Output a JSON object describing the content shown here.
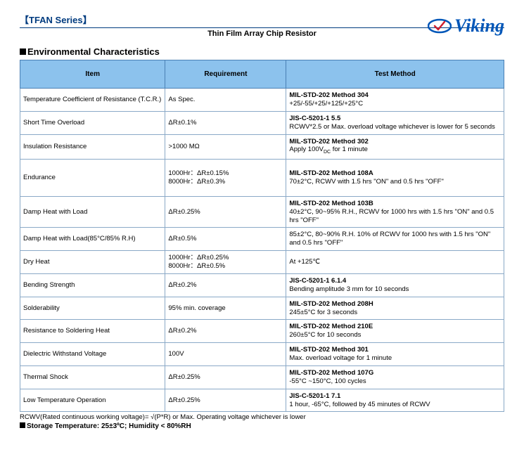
{
  "series_title": "【TFAN Series】",
  "subtitle": "Thin Film Array Chip Resistor",
  "logo_text": "Viking",
  "section_title": "Environmental Characteristics",
  "columns": [
    "Item",
    "Requirement",
    "Test Method"
  ],
  "rows": [
    {
      "item": "Temperature Coefficient of Resistance (T.C.R.)",
      "req": "As Spec.",
      "method_b": "MIL-STD-202   Method 304",
      "method": "+25/-55/+25/+125/+25°C"
    },
    {
      "item": "Short Time Overload",
      "req": "ΔR±0.1%",
      "method_b": "JIS-C-5201-1 5.5",
      "method": "RCWV*2.5 or Max. overload voltage whichever is lower for 5 seconds"
    },
    {
      "item": "Insulation Resistance",
      "req": ">1000 MΩ",
      "method_b": "MIL-STD-202   Method 302",
      "method": "Apply 100V_DC for 1 minute"
    },
    {
      "item": "Endurance",
      "req": "1000Hr：ΔR±0.15%\n8000Hr：ΔR±0.3%",
      "method_b": "MIL-STD-202   Method 108A",
      "method": "70±2°C, RCWV with 1.5 hrs \"ON\" and 0.5 hrs \"OFF\"",
      "tall": true
    },
    {
      "item": "Damp Heat with Load",
      "req": "ΔR±0.25%",
      "method_b": "MIL-STD-202   Method 103B",
      "method": "40±2°C, 90~95% R.H., RCWV for 1000 hrs with 1.5 hrs \"ON\" and 0.5 hrs \"OFF\""
    },
    {
      "item": "Damp Heat with Load(85°C/85% R.H)",
      "req": "ΔR±0.5%",
      "method_b": "",
      "method": "85±2°C, 80~90% R.H. 10% of RCWV for 1000 hrs with 1.5 hrs \"ON\" and 0.5 hrs \"OFF\""
    },
    {
      "item": "Dry Heat",
      "req": "1000Hr：ΔR±0.25%\n8000Hr：ΔR±0.5%",
      "method_b": "",
      "method": "At +125℃"
    },
    {
      "item": "Bending Strength",
      "req": "ΔR±0.2%",
      "method_b": "JIS-C-5201-1 6.1.4",
      "method": "Bending amplitude 3 mm for 10 seconds"
    },
    {
      "item": "Solderability",
      "req": "95% min. coverage",
      "method_b": "MIL-STD-202   Method 208H",
      "method": "245±5°C for 3 seconds"
    },
    {
      "item": "Resistance to Soldering Heat",
      "req": "ΔR±0.2%",
      "method_b": "MIL-STD-202   Method 210E",
      "method": "260±5°C for 10 seconds"
    },
    {
      "item": "Dielectric Withstand Voltage",
      "req": "100V",
      "method_b": "MIL-STD-202   Method 301",
      "method": "Max. overload voltage for 1 minute"
    },
    {
      "item": "Thermal Shock",
      "req": "ΔR±0.25%",
      "method_b": "MIL-STD-202   Method 107G",
      "method": "-55°C ~150°C, 100 cycles"
    },
    {
      "item": "Low Temperature Operation",
      "req": "ΔR±0.25%",
      "method_b": "JIS-C-5201-1 7.1",
      "method": "1 hour, -65°C, followed by 45 minutes of RCWV"
    }
  ],
  "footnote": "RCWV(Rated continuous working voltage)= √(P*R) or Max. Operating voltage whichever is lower",
  "storage": "Storage Temperature: 25±3ºC; Humidity < 80%RH"
}
